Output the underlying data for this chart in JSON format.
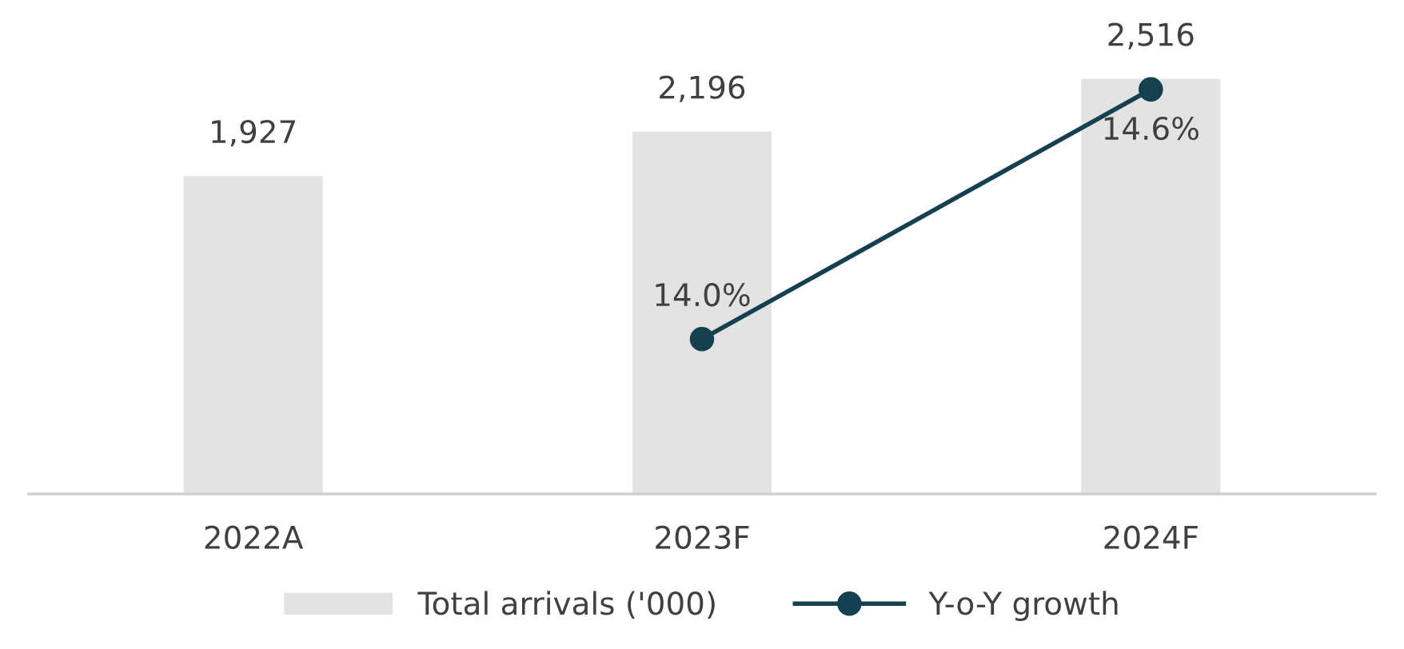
{
  "chart_data": {
    "type": "bar",
    "categories": [
      "2022A",
      "2023F",
      "2024F"
    ],
    "series": [
      {
        "name": "Total arrivals ('000)",
        "color": "#e3e3e3",
        "values": [
          1927,
          2196,
          2516
        ],
        "value_labels": [
          "1,927",
          "2,196",
          "2,516"
        ]
      },
      {
        "name": "Y-o-Y growth",
        "type": "line",
        "axis": "y2",
        "color": "#15404f",
        "values": [
          null,
          14.0,
          14.6
        ],
        "value_labels": [
          null,
          "14.0%",
          "14.6%"
        ],
        "marker": "circle",
        "line_style": "solid"
      }
    ],
    "tick_labels": "x",
    "grid": false,
    "legend": "bottom"
  }
}
